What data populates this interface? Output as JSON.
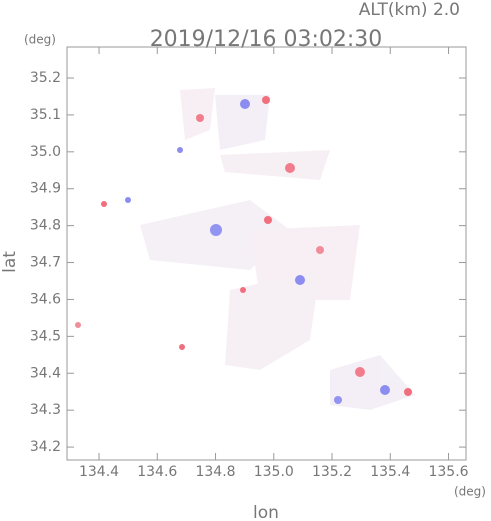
{
  "chart_data": {
    "type": "field-map",
    "title": "2019/12/16 03:02:30",
    "altitude_label": "ALT(km)  2.0",
    "x_label": "lon",
    "y_label": "lat",
    "x_unit": "(deg)",
    "y_unit": "(deg)",
    "xlim": [
      134.29,
      135.66
    ],
    "ylim": [
      34.165,
      35.284
    ],
    "xticks": [
      134.4,
      134.6,
      134.8,
      {
        "value": 135.0,
        "label": "135.0"
      },
      135.2,
      135.4,
      135.6
    ],
    "yticks": [
      34.2,
      34.3,
      34.4,
      34.5,
      34.6,
      34.7,
      34.8,
      34.9,
      {
        "value": 35.0,
        "label": "35.0"
      },
      35.1,
      35.2
    ]
  }
}
